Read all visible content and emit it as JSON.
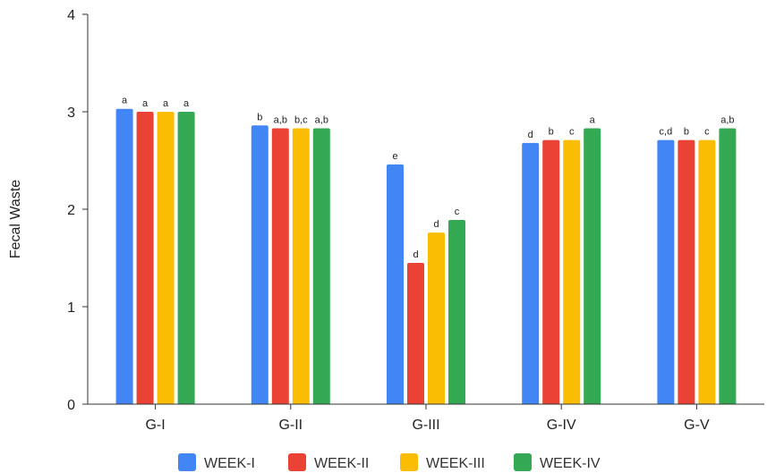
{
  "chart_data": {
    "type": "bar",
    "title": "",
    "xlabel": "",
    "ylabel": "Fecal Waste",
    "ylim": [
      0,
      4
    ],
    "yticks": [
      0,
      1,
      2,
      3,
      4
    ],
    "grid": false,
    "legend_position": "bottom",
    "categories": [
      "G-I",
      "G-II",
      "G-III",
      "G-IV",
      "G-V"
    ],
    "series": [
      {
        "name": "WEEK-I",
        "color": "#4285f4",
        "values": [
          3.03,
          2.86,
          2.46,
          2.68,
          2.71
        ],
        "labels": [
          "a",
          "b",
          "e",
          "d",
          "c,d"
        ]
      },
      {
        "name": "WEEK-II",
        "color": "#ea4335",
        "values": [
          3.0,
          2.83,
          1.45,
          2.71,
          2.71
        ],
        "labels": [
          "a",
          "a,b",
          "d",
          "b",
          "b"
        ]
      },
      {
        "name": "WEEK-III",
        "color": "#fbbc04",
        "values": [
          3.0,
          2.83,
          1.76,
          2.71,
          2.71
        ],
        "labels": [
          "a",
          "b,c",
          "d",
          "c",
          "c"
        ]
      },
      {
        "name": "WEEK-IV",
        "color": "#34a853",
        "values": [
          3.0,
          2.83,
          1.89,
          2.83,
          2.83
        ],
        "labels": [
          "a",
          "a,b",
          "c",
          "a",
          "a,b"
        ]
      }
    ]
  }
}
